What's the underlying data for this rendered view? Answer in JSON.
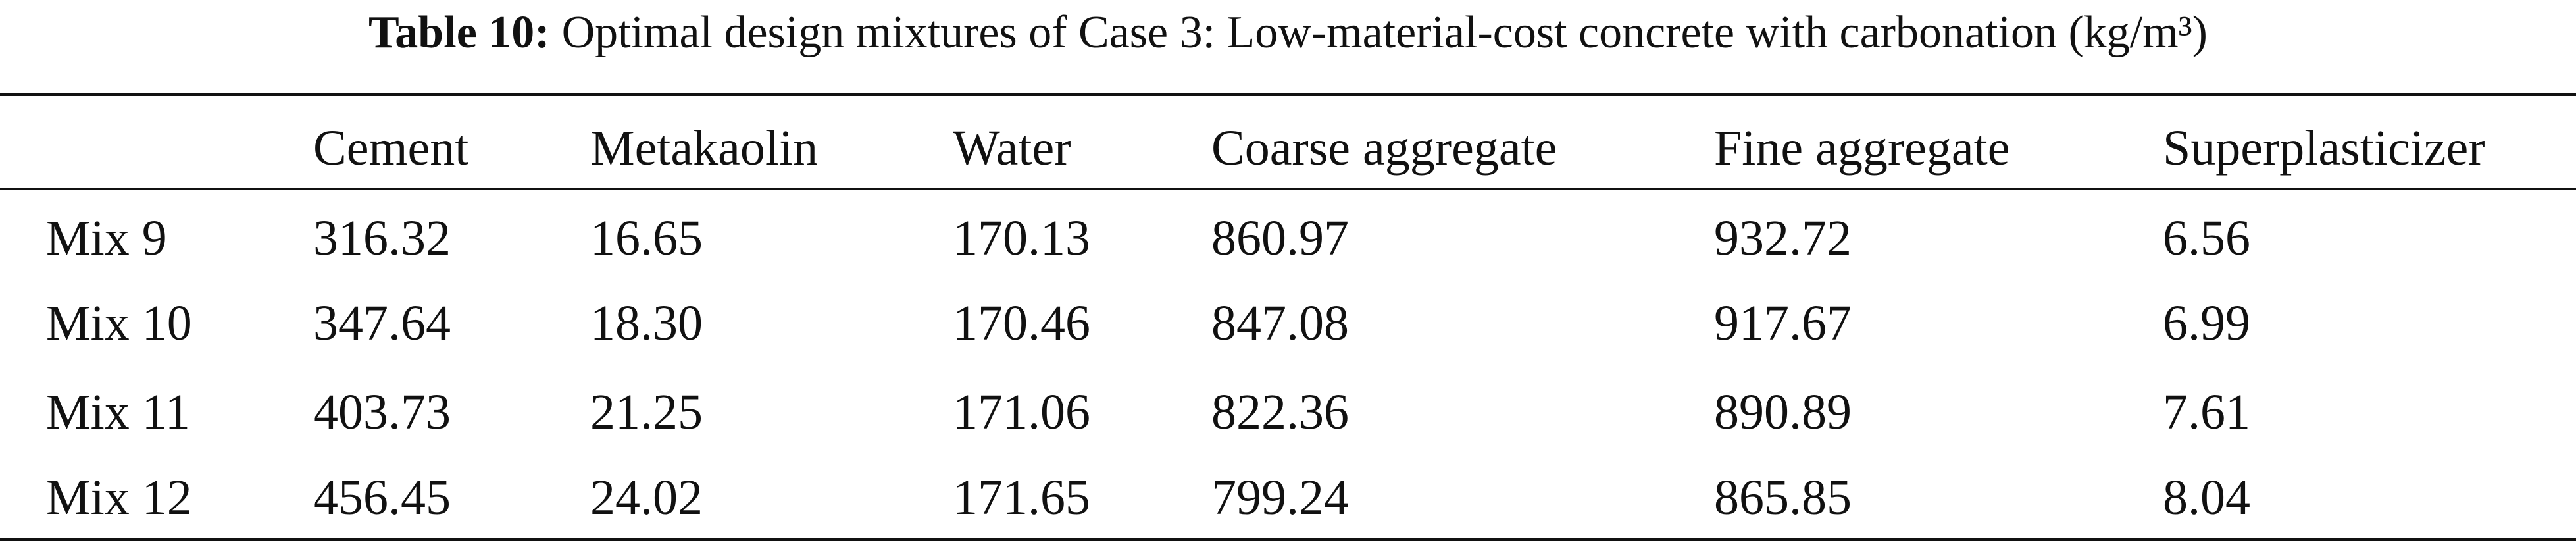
{
  "header": {
    "label": "Table 10:",
    "title": "Optimal design mixtures of Case 3: Low-material-cost concrete with carbonation (kg/m³)"
  },
  "table": {
    "columns": [
      "Cement",
      "Metakaolin",
      "Water",
      "Coarse aggregate",
      "Fine aggregate",
      "Superplasticizer"
    ],
    "rows": [
      [
        "Mix 9",
        "316.32",
        "16.65",
        "170.13",
        "860.97",
        "932.72",
        "6.56"
      ],
      [
        "Mix 10",
        "347.64",
        "18.30",
        "170.46",
        "847.08",
        "917.67",
        "6.99"
      ],
      [
        "Mix 11",
        "403.73",
        "21.25",
        "171.06",
        "822.36",
        "890.89",
        "7.61"
      ],
      [
        "Mix 12",
        "456.45",
        "24.02",
        "171.65",
        "799.24",
        "865.85",
        "8.04"
      ]
    ]
  }
}
